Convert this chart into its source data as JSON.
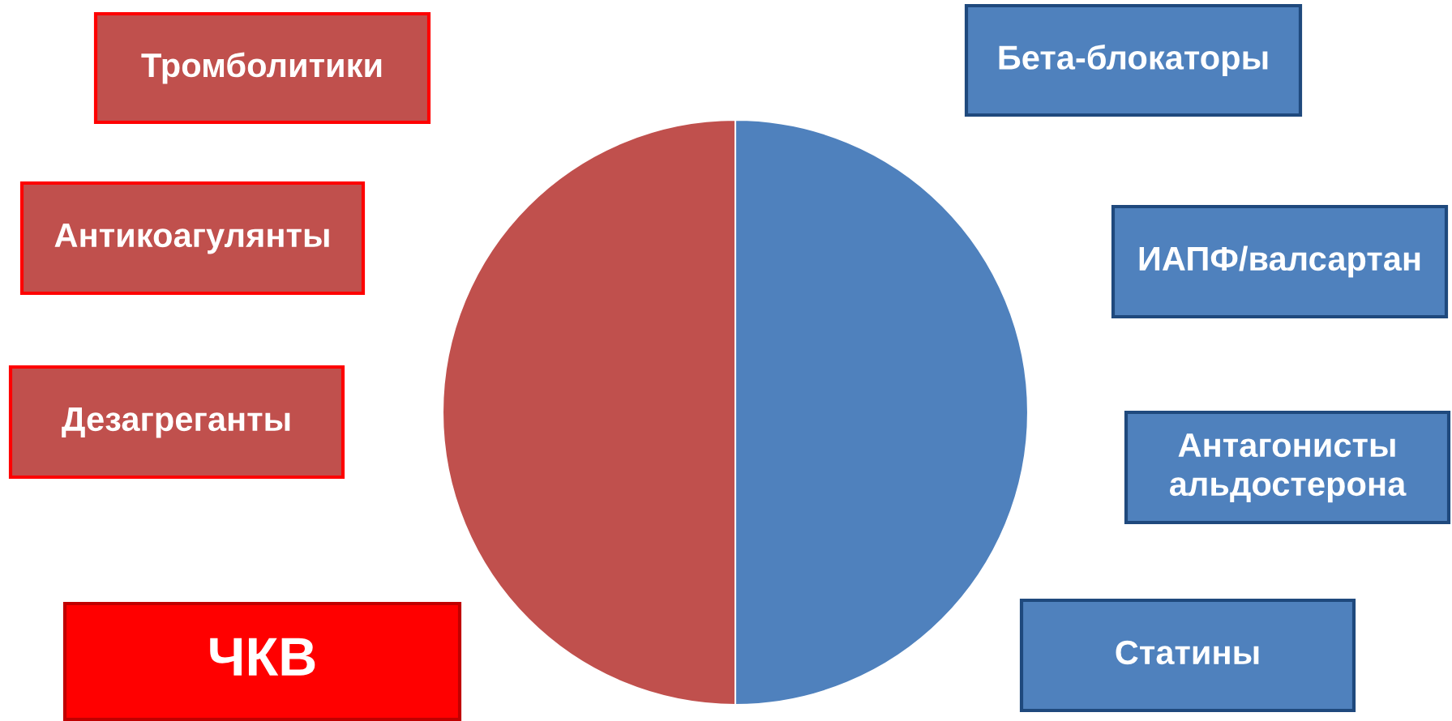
{
  "chart_data": {
    "type": "pie",
    "categories": [
      null,
      null
    ],
    "values": [
      50,
      50
    ],
    "colors": [
      "#4f81bd",
      "#c0504d"
    ],
    "annotations": [
      "Тромболитики",
      "Антикоагулянты",
      "Дезагреганты",
      "ЧКВ",
      "Бета-блокаторы",
      "ИАПФ/валсартан",
      "Антагонисты альдостерона",
      "Статины"
    ]
  }
}
